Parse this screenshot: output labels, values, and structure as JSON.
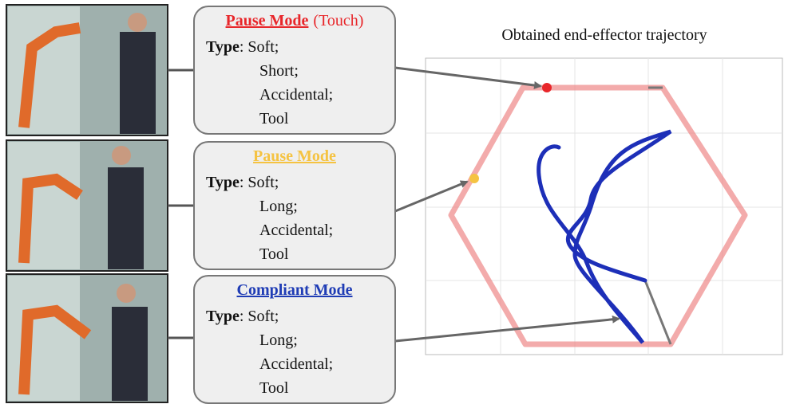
{
  "plot_title": "Obtained end-effector trajectory",
  "panels": [
    {
      "mode": "Pause Mode",
      "note": "(Touch)",
      "type_label": "Type",
      "lines": [
        ": Soft;",
        "Short;",
        "Accidental;",
        "Tool"
      ]
    },
    {
      "mode": "Pause Mode",
      "type_label": "Type",
      "lines": [
        ": Soft;",
        "Long;",
        "Accidental;",
        "Tool"
      ]
    },
    {
      "mode": "Compliant Mode",
      "type_label": "Type",
      "lines": [
        ": Soft;",
        "Long;",
        "Accidental;",
        "Tool"
      ]
    }
  ]
}
